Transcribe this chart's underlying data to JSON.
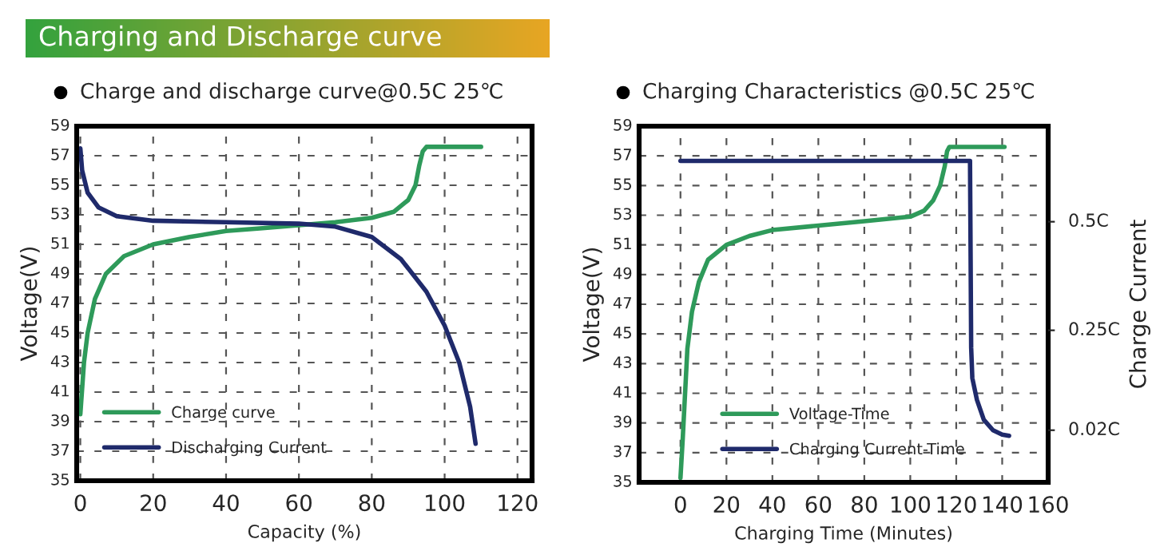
{
  "chart_data": [
    {
      "type": "line",
      "title": "Charging and Discharge curve",
      "subtitle": "Charge and discharge curve@0.5C 25℃",
      "xlabel": "Capacity (%)",
      "ylabel": "Voltage(V)",
      "xlim": [
        -1,
        124
      ],
      "xticks": [
        0,
        20,
        40,
        60,
        80,
        100,
        120
      ],
      "ylim": [
        35,
        59
      ],
      "yticks": [
        35,
        37,
        39,
        41,
        43,
        45,
        47,
        49,
        51,
        53,
        55,
        57,
        59
      ],
      "grid": true,
      "legend": "bottom left",
      "line_style": "solid",
      "marker": "none",
      "series": [
        {
          "name": "Charge curve",
          "color": "#2e9a5a",
          "x": [
            0,
            1,
            2,
            4,
            7,
            12,
            20,
            30,
            40,
            50,
            60,
            70,
            80,
            86,
            90,
            92,
            93,
            94,
            95,
            110
          ],
          "values": [
            39.5,
            43,
            45,
            47.3,
            49,
            50.2,
            51,
            51.5,
            51.9,
            52.1,
            52.3,
            52.5,
            52.8,
            53.2,
            54,
            55,
            56.3,
            57.3,
            57.6,
            57.6
          ]
        },
        {
          "name": "Discharging Current",
          "color": "#1f2a6b",
          "x": [
            0,
            0.5,
            2,
            5,
            10,
            20,
            40,
            60,
            70,
            80,
            88,
            95,
            100,
            104,
            107,
            108.5
          ],
          "values": [
            57.5,
            56,
            54.5,
            53.5,
            52.9,
            52.6,
            52.5,
            52.4,
            52.2,
            51.5,
            50,
            47.8,
            45.5,
            43,
            40,
            37.5
          ]
        }
      ]
    },
    {
      "type": "line",
      "title": "Charging Characteristics @0.5C 25℃",
      "xlabel": "Charging Time (Minutes)",
      "ylabel": "Voltage(V)",
      "y2label": "Charge Current",
      "xlim": [
        -18,
        160
      ],
      "xticks": [
        0,
        20,
        40,
        60,
        80,
        100,
        120,
        140,
        160
      ],
      "ylim": [
        35,
        59
      ],
      "yticks": [
        35,
        37,
        39,
        41,
        43,
        45,
        47,
        49,
        51,
        53,
        55,
        57,
        59
      ],
      "y2lim": [
        -0.1,
        0.72
      ],
      "y2ticks": [
        {
          "value": 0.5,
          "label": "0.5C"
        },
        {
          "value": 0.25,
          "label": "0.25C"
        },
        {
          "value": 0.02,
          "label": "0.02C"
        }
      ],
      "grid": true,
      "legend": "bottom",
      "line_style": "solid",
      "marker": "none",
      "series": [
        {
          "name": "Voltage-Time",
          "color": "#2e9a5a",
          "x": [
            0,
            1,
            2,
            3,
            5,
            8,
            12,
            20,
            30,
            40,
            60,
            80,
            100,
            106,
            110,
            113,
            115,
            116,
            117,
            141
          ],
          "values": [
            35.3,
            38,
            41,
            44,
            46.5,
            48.5,
            50,
            51,
            51.6,
            52,
            52.3,
            52.6,
            52.9,
            53.3,
            54,
            55,
            56.3,
            57.3,
            57.6,
            57.6
          ]
        },
        {
          "name": "Charging Current-Time",
          "color": "#1f2a6b",
          "axis": "y2",
          "x": [
            0,
            126,
            126.5,
            127,
            129,
            132,
            136,
            140,
            143
          ],
          "values": [
            0.64,
            0.64,
            0.21,
            0.14,
            0.09,
            0.044,
            0.02,
            0.01,
            0.007
          ]
        }
      ]
    }
  ]
}
